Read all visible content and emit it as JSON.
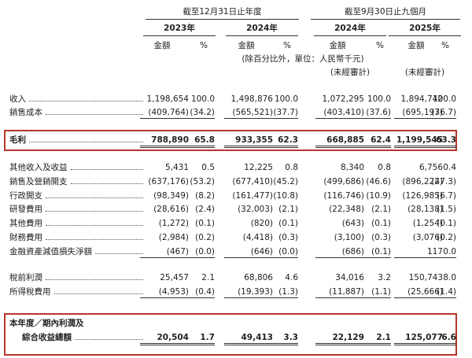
{
  "header": {
    "periods": [
      "截至12月31日止年度",
      "截至9月30日止九個月"
    ],
    "years": [
      "2023年",
      "2024年",
      "2024年",
      "2025年"
    ],
    "column_labels": [
      "金額",
      "%",
      "金額",
      "%",
      "金額",
      "%",
      "金額",
      "%"
    ],
    "unit_note": "(除百分比外，單位：人民幣千元)",
    "unaudited": [
      "(未經審計)",
      "(未經審計)"
    ]
  },
  "table": {
    "rows": [
      {
        "label": "收入",
        "values": [
          "1,198,654",
          "100.0",
          "1,498,876",
          "100.0",
          "1,072,295",
          "100.0",
          "1,894,742",
          "100.0"
        ]
      },
      {
        "label": "銷售成本",
        "values": [
          "(409,764)",
          "(34.2)",
          "(565,521)",
          "(37.7)",
          "(403,410)",
          "(37.6)",
          "(695,197)",
          "(36.7)"
        ]
      },
      {
        "label": "毛利",
        "values": [
          "788,890",
          "65.8",
          "933,355",
          "62.3",
          "668,885",
          "62.4",
          "1,199,545",
          "63.3"
        ]
      },
      {
        "label": "其他收入及收益",
        "values": [
          "5,431",
          "0.5",
          "12,225",
          "0.8",
          "8,340",
          "0.8",
          "6,756",
          "0.4"
        ]
      },
      {
        "label": "銷售及營銷開支",
        "values": [
          "(637,176)",
          "(53.2)",
          "(677,410)",
          "(45.2)",
          "(499,686)",
          "(46.6)",
          "(896,222)",
          "(47.3)"
        ]
      },
      {
        "label": "行政開支",
        "values": [
          "(98,349)",
          "(8.2)",
          "(161,477)",
          "(10.8)",
          "(116,746)",
          "(10.9)",
          "(126,985)",
          "(6.7)"
        ]
      },
      {
        "label": "研發費用",
        "values": [
          "(28,616)",
          "(2.4)",
          "(32,003)",
          "(2.1)",
          "(22,348)",
          "(2.1)",
          "(28,138)",
          "(1.5)"
        ]
      },
      {
        "label": "其他費用",
        "values": [
          "(1,272)",
          "(0.1)",
          "(820)",
          "(0.1)",
          "(643)",
          "(0.1)",
          "(1,254)",
          "(0.1)"
        ]
      },
      {
        "label": "財務費用",
        "values": [
          "(2,984)",
          "(0.2)",
          "(4,418)",
          "(0.3)",
          "(3,100)",
          "(0.3)",
          "(3,076)",
          "(0.2)"
        ]
      },
      {
        "label": "金融資產減值損失淨額",
        "values": [
          "(467)",
          "(0.0)",
          "(646)",
          "(0.0)",
          "(686)",
          "(0.1)",
          "117",
          "0.0"
        ]
      },
      {
        "label": "稅前利潤",
        "values": [
          "25,457",
          "2.1",
          "68,806",
          "4.6",
          "34,016",
          "3.2",
          "150,743",
          "8.0"
        ]
      },
      {
        "label": "所得稅費用",
        "values": [
          "(4,953)",
          "(0.4)",
          "(19,393)",
          "(1.3)",
          "(11,887)",
          "(1.1)",
          "(25,666)",
          "(1.4)"
        ]
      },
      {
        "label": [
          "本年度／期內利潤及",
          "綜合收益總額"
        ],
        "values": [
          "20,504",
          "1.7",
          "49,413",
          "3.3",
          "22,129",
          "2.1",
          "125,077",
          "6.6"
        ]
      }
    ]
  }
}
